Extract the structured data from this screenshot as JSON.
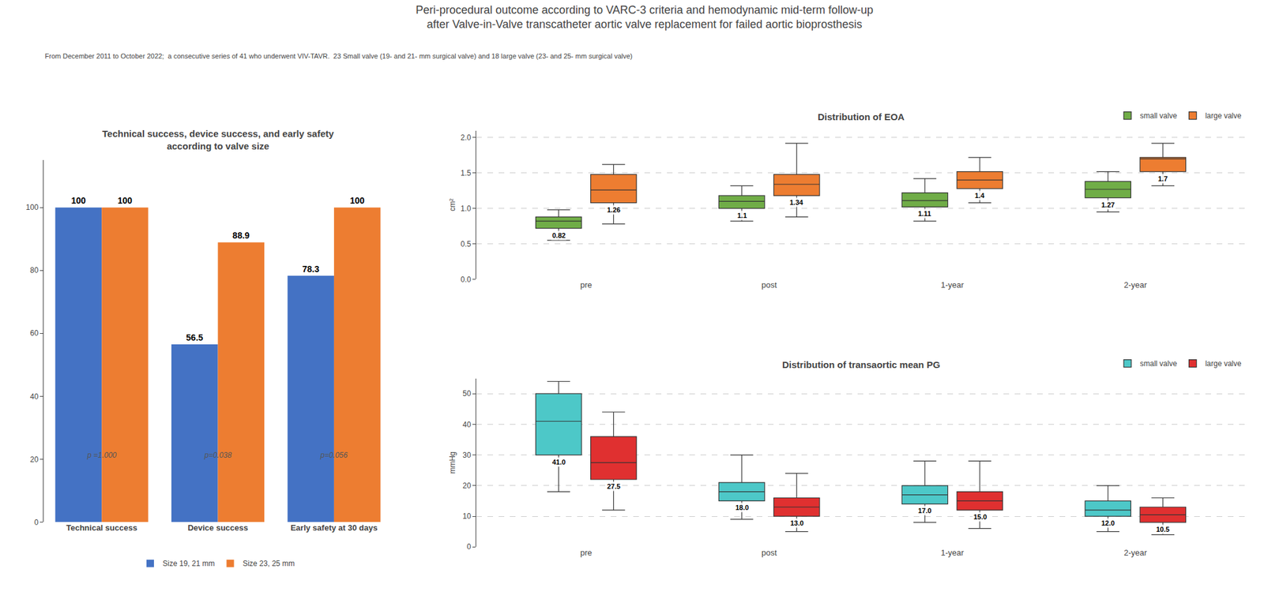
{
  "title": "Peri-procedural outcome according to VARC-3 criteria and hemodynamic mid-term follow-up\nafter Valve-in-Valve transcatheter aortic valve replacement for failed aortic bioprosthesis",
  "subtitle": "From December 2011 to October 2022;  a consecutive series of 41 who underwent VIV-TAVR.  23 Small valve (19- and 21- mm surgical valve) and 18 large valve (23- and 25- mm surgical valve)",
  "chart_data": [
    {
      "type": "bar",
      "title": "Technical success, device success, and early safety\naccording to valve size",
      "categories": [
        "Technical success",
        "Device success",
        "Early safety at 30 days"
      ],
      "series": [
        {
          "name": "Size 19, 21 mm",
          "color": "#4472C4",
          "values": [
            100,
            56.5,
            78.3
          ]
        },
        {
          "name": "Size 23, 25 mm",
          "color": "#ED7D31",
          "values": [
            100,
            88.9,
            100
          ]
        }
      ],
      "ylim": [
        0,
        115
      ],
      "yticks": [
        0,
        20,
        40,
        60,
        80,
        100
      ],
      "grid": false,
      "legend": "bottom",
      "data_labels": true,
      "annotations": [
        {
          "category": "Technical success",
          "text": "p =1.000"
        },
        {
          "category": "Device success",
          "text": "p=0.038"
        },
        {
          "category": "Early safety at 30 days",
          "text": "p=0.056"
        }
      ]
    },
    {
      "type": "box",
      "title": "Distribution of EOA",
      "ylabel": "cm²",
      "categories": [
        "pre",
        "post",
        "1-year",
        "2-year"
      ],
      "series": [
        {
          "name": "small valve",
          "color": "#70AD47",
          "median": [
            0.82,
            1.1,
            1.11,
            1.27
          ],
          "q1": [
            0.72,
            1.0,
            1.02,
            1.15
          ],
          "q3": [
            0.88,
            1.18,
            1.22,
            1.38
          ],
          "whislo": [
            0.55,
            0.82,
            0.82,
            0.95
          ],
          "whishi": [
            0.98,
            1.32,
            1.42,
            1.52
          ],
          "value_labels": [
            "0.82",
            "1.1",
            "1.11",
            "1.27"
          ]
        },
        {
          "name": "large valve",
          "color": "#ED7D31",
          "median": [
            1.26,
            1.34,
            1.4,
            1.7
          ],
          "q1": [
            1.08,
            1.18,
            1.28,
            1.52
          ],
          "q3": [
            1.48,
            1.48,
            1.52,
            1.72
          ],
          "whislo": [
            0.78,
            0.88,
            1.08,
            1.32
          ],
          "whishi": [
            1.62,
            1.92,
            1.72,
            1.92
          ],
          "value_labels": [
            "1.26",
            "1.34",
            "1.4",
            "1.7"
          ]
        }
      ],
      "ylim": [
        0.0,
        2.1
      ],
      "yticks": [
        {
          "value": 0.0,
          "label": "0.0"
        },
        0.5,
        {
          "value": 1.0,
          "label": "1.0"
        },
        1.5,
        {
          "value": 2.0,
          "label": "2.0"
        }
      ],
      "grid": true,
      "legend": "top right",
      "data_labels": true
    },
    {
      "type": "box",
      "title": "Distribution of transaortic mean PG",
      "ylabel": "mmHg",
      "categories": [
        "pre",
        "post",
        "1-year",
        "2-year"
      ],
      "series": [
        {
          "name": "small valve",
          "color": "#4DC8C8",
          "median": [
            41.0,
            18.0,
            17.0,
            12.0
          ],
          "q1": [
            30,
            15,
            14,
            10
          ],
          "q3": [
            50,
            21,
            20,
            15
          ],
          "whislo": [
            18,
            9,
            8,
            5
          ],
          "whishi": [
            54,
            30,
            28,
            20
          ],
          "value_labels": [
            "41.0",
            "18.0",
            "17.0",
            "12.0"
          ]
        },
        {
          "name": "large valve",
          "color": "#E03030",
          "median": [
            27.5,
            13.0,
            15.0,
            10.5
          ],
          "q1": [
            22,
            10,
            12,
            8
          ],
          "q3": [
            36,
            16,
            18,
            13
          ],
          "whislo": [
            12,
            5,
            6,
            4
          ],
          "whishi": [
            44,
            24,
            28,
            16
          ],
          "value_labels": [
            "27.5",
            "13.0",
            "15.0",
            "10.5"
          ]
        }
      ],
      "ylim": [
        0,
        55
      ],
      "yticks": [
        0,
        10,
        20,
        30,
        40,
        50
      ],
      "grid": true,
      "legend": "top right",
      "data_labels": true
    }
  ]
}
